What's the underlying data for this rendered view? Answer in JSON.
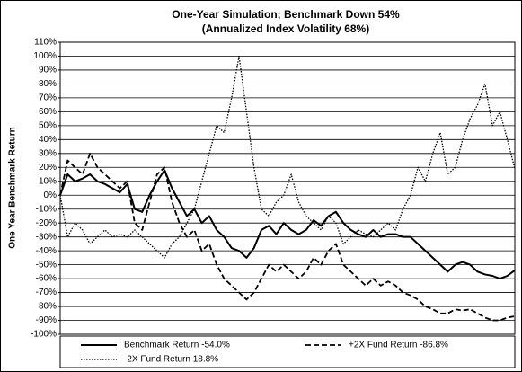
{
  "chart_data": {
    "type": "line",
    "title": "One-Year Simulation; Benchmark Down 54%",
    "subtitle": "(Annualized Index Volatility 68%)",
    "y_label": "One Year Benchmark Return",
    "ylim": [
      -100,
      110
    ],
    "yticks": [
      {
        "value": -100,
        "label": "-100%"
      },
      {
        "value": -90,
        "label": "-90%"
      },
      {
        "value": -80,
        "label": "-80%"
      },
      {
        "value": -70,
        "label": "-70%"
      },
      {
        "value": -60,
        "label": "-60%"
      },
      {
        "value": -50,
        "label": "-50%"
      },
      {
        "value": -40,
        "label": "-40%"
      },
      {
        "value": -30,
        "label": "-30%"
      },
      {
        "value": -20,
        "label": "-20%"
      },
      {
        "value": -10,
        "label": "-10%"
      },
      {
        "value": 0,
        "label": "0%"
      },
      {
        "value": 10,
        "label": "10%"
      },
      {
        "value": 20,
        "label": "20%"
      },
      {
        "value": 30,
        "label": "30%"
      },
      {
        "value": 40,
        "label": "40%"
      },
      {
        "value": 50,
        "label": "50%"
      },
      {
        "value": 60,
        "label": "60%"
      },
      {
        "value": 70,
        "label": "70%"
      },
      {
        "value": 80,
        "label": "80%"
      },
      {
        "value": 90,
        "label": "90%"
      },
      {
        "value": 100,
        "label": "100%"
      },
      {
        "value": 110,
        "label": "110%"
      }
    ],
    "grid": true,
    "legend": "bottom",
    "series": [
      {
        "name": "Benchmark Return -54.0%",
        "color": "#000000",
        "style": "solid",
        "values": [
          0,
          15,
          10,
          12,
          15,
          10,
          8,
          5,
          2,
          8,
          -10,
          -12,
          0,
          10,
          18,
          5,
          -5,
          -15,
          -10,
          -20,
          -15,
          -25,
          -30,
          -38,
          -40,
          -45,
          -38,
          -25,
          -22,
          -28,
          -20,
          -25,
          -28,
          -25,
          -18,
          -22,
          -15,
          -12,
          -20,
          -25,
          -28,
          -30,
          -25,
          -30,
          -28,
          -28,
          -30,
          -30,
          -35,
          -40,
          -45,
          -50,
          -55,
          -50,
          -48,
          -50,
          -55,
          -57,
          -58,
          -60,
          -58,
          -54
        ]
      },
      {
        "name": "+2X Fund Return -86.8%",
        "color": "#000000",
        "style": "dashed",
        "values": [
          0,
          25,
          20,
          15,
          30,
          20,
          15,
          10,
          5,
          10,
          -20,
          -25,
          -5,
          15,
          20,
          -5,
          -20,
          -30,
          -25,
          -40,
          -35,
          -50,
          -60,
          -65,
          -70,
          -75,
          -70,
          -60,
          -50,
          -55,
          -50,
          -55,
          -60,
          -55,
          -45,
          -50,
          -40,
          -35,
          -50,
          -55,
          -60,
          -65,
          -60,
          -65,
          -62,
          -65,
          -70,
          -72,
          -75,
          -80,
          -82,
          -85,
          -85,
          -82,
          -83,
          -82,
          -85,
          -88,
          -90,
          -90,
          -88,
          -87
        ]
      },
      {
        "name": "-2X Fund Return 18.8%",
        "color": "#000000",
        "style": "dotted",
        "values": [
          0,
          -30,
          -20,
          -25,
          -35,
          -30,
          -25,
          -30,
          -28,
          -30,
          -25,
          -30,
          -35,
          -40,
          -45,
          -35,
          -30,
          -20,
          -10,
          10,
          30,
          50,
          45,
          70,
          100,
          60,
          20,
          -10,
          -15,
          -5,
          0,
          15,
          -5,
          -15,
          -20,
          -25,
          -15,
          -20,
          -35,
          -30,
          -25,
          -28,
          -30,
          -25,
          -20,
          -25,
          -10,
          0,
          20,
          10,
          30,
          45,
          15,
          20,
          40,
          55,
          65,
          80,
          50,
          60,
          40,
          19
        ]
      }
    ]
  }
}
